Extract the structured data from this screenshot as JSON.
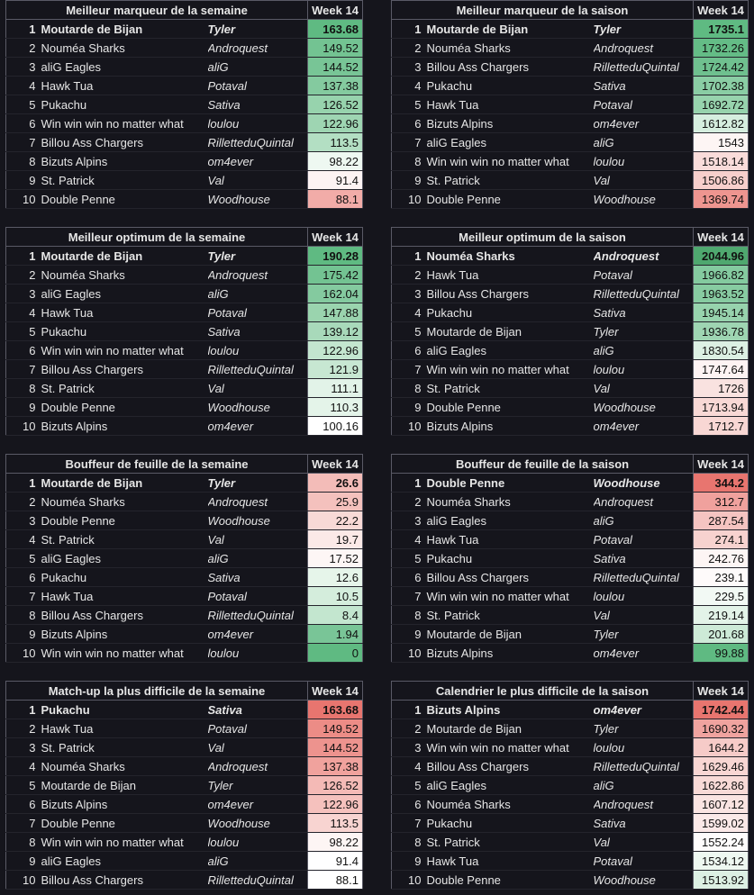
{
  "week_label": "Week 14",
  "tables": [
    {
      "title": "Meilleur marqueur de la semaine",
      "rows": [
        {
          "rank": "1",
          "team": "Moutarde de Bijan",
          "owner": "Tyler",
          "value": "163.68",
          "color": "#5fba82"
        },
        {
          "rank": "2",
          "team": "Nouméa Sharks",
          "owner": "Androquest",
          "value": "149.52",
          "color": "#73c392"
        },
        {
          "rank": "3",
          "team": "aliG Eagles",
          "owner": "aliG",
          "value": "144.52",
          "color": "#78c596"
        },
        {
          "rank": "4",
          "team": "Hawk Tua",
          "owner": "Potaval",
          "value": "137.38",
          "color": "#84ca9f"
        },
        {
          "rank": "5",
          "team": "Pukachu",
          "owner": "Sativa",
          "value": "126.52",
          "color": "#97d3ad"
        },
        {
          "rank": "6",
          "team": "Win win win no matter what",
          "owner": "loulou",
          "value": "122.96",
          "color": "#9ed5b2"
        },
        {
          "rank": "7",
          "team": "Billou Ass Chargers",
          "owner": "RilletteduQuintal",
          "value": "113.5",
          "color": "#b3dfc3"
        },
        {
          "rank": "8",
          "team": "Bizuts Alpins",
          "owner": "om4ever",
          "value": "98.22",
          "color": "#eef8f1"
        },
        {
          "rank": "9",
          "team": "St. Patrick",
          "owner": "Val",
          "value": "91.4",
          "color": "#fdf3f3"
        },
        {
          "rank": "10",
          "team": "Double Penne",
          "owner": "Woodhouse",
          "value": "88.1",
          "color": "#f2aca8"
        }
      ]
    },
    {
      "title": "Meilleur marqueur de la saison",
      "rows": [
        {
          "rank": "1",
          "team": "Moutarde de Bijan",
          "owner": "Tyler",
          "value": "1735.1",
          "color": "#5fba82"
        },
        {
          "rank": "2",
          "team": "Nouméa Sharks",
          "owner": "Androquest",
          "value": "1732.26",
          "color": "#64bc86"
        },
        {
          "rank": "3",
          "team": "Billou Ass Chargers",
          "owner": "RilletteduQuintal",
          "value": "1724.42",
          "color": "#6fc08f"
        },
        {
          "rank": "4",
          "team": "Pukachu",
          "owner": "Sativa",
          "value": "1702.38",
          "color": "#8acda4"
        },
        {
          "rank": "5",
          "team": "Hawk Tua",
          "owner": "Potaval",
          "value": "1692.72",
          "color": "#97d3ad"
        },
        {
          "rank": "6",
          "team": "Bizuts Alpins",
          "owner": "om4ever",
          "value": "1612.82",
          "color": "#d6eedf"
        },
        {
          "rank": "7",
          "team": "aliG Eagles",
          "owner": "aliG",
          "value": "1543",
          "color": "#fdf5f4"
        },
        {
          "rank": "8",
          "team": "Win win win no matter what",
          "owner": "loulou",
          "value": "1518.14",
          "color": "#f9dcda"
        },
        {
          "rank": "9",
          "team": "St. Patrick",
          "owner": "Val",
          "value": "1506.86",
          "color": "#f7cfcc"
        },
        {
          "rank": "10",
          "team": "Double Penne",
          "owner": "Woodhouse",
          "value": "1369.74",
          "color": "#ee9590"
        }
      ]
    },
    {
      "title": "Meilleur optimum de la semaine",
      "rows": [
        {
          "rank": "1",
          "team": "Moutarde de Bijan",
          "owner": "Tyler",
          "value": "190.28",
          "color": "#5fba82"
        },
        {
          "rank": "2",
          "team": "Nouméa Sharks",
          "owner": "Androquest",
          "value": "175.42",
          "color": "#73c392"
        },
        {
          "rank": "3",
          "team": "aliG Eagles",
          "owner": "aliG",
          "value": "162.04",
          "color": "#84ca9f"
        },
        {
          "rank": "4",
          "team": "Hawk Tua",
          "owner": "Potaval",
          "value": "147.88",
          "color": "#9ad4ae"
        },
        {
          "rank": "5",
          "team": "Pukachu",
          "owner": "Sativa",
          "value": "139.12",
          "color": "#a8d9ba"
        },
        {
          "rank": "6",
          "team": "Win win win no matter what",
          "owner": "loulou",
          "value": "122.96",
          "color": "#c3e6cf"
        },
        {
          "rank": "7",
          "team": "Billou Ass Chargers",
          "owner": "RilletteduQuintal",
          "value": "121.9",
          "color": "#c7e7d2"
        },
        {
          "rank": "8",
          "team": "St. Patrick",
          "owner": "Val",
          "value": "111.1",
          "color": "#e2f3e8"
        },
        {
          "rank": "9",
          "team": "Double Penne",
          "owner": "Woodhouse",
          "value": "110.3",
          "color": "#e4f4e9"
        },
        {
          "rank": "10",
          "team": "Bizuts Alpins",
          "owner": "om4ever",
          "value": "100.16",
          "color": "#ffffff"
        }
      ]
    },
    {
      "title": "Meilleur optimum de la saison",
      "rows": [
        {
          "rank": "1",
          "team": "Nouméa Sharks",
          "owner": "Androquest",
          "value": "2044.96",
          "color": "#4fa86f"
        },
        {
          "rank": "2",
          "team": "Hawk Tua",
          "owner": "Potaval",
          "value": "1966.82",
          "color": "#84ca9f"
        },
        {
          "rank": "3",
          "team": "Billou Ass Chargers",
          "owner": "RilletteduQuintal",
          "value": "1963.52",
          "color": "#87cba1"
        },
        {
          "rank": "4",
          "team": "Pukachu",
          "owner": "Sativa",
          "value": "1945.14",
          "color": "#97d3ad"
        },
        {
          "rank": "5",
          "team": "Moutarde de Bijan",
          "owner": "Tyler",
          "value": "1936.78",
          "color": "#9ed5b2"
        },
        {
          "rank": "6",
          "team": "aliG Eagles",
          "owner": "aliG",
          "value": "1830.54",
          "color": "#dcf0e3"
        },
        {
          "rank": "7",
          "team": "Win win win no matter what",
          "owner": "loulou",
          "value": "1747.64",
          "color": "#fdf3f3"
        },
        {
          "rank": "8",
          "team": "St. Patrick",
          "owner": "Val",
          "value": "1726",
          "color": "#f9e2e0"
        },
        {
          "rank": "9",
          "team": "Double Penne",
          "owner": "Woodhouse",
          "value": "1713.94",
          "color": "#f8d8d5"
        },
        {
          "rank": "10",
          "team": "Bizuts Alpins",
          "owner": "om4ever",
          "value": "1712.7",
          "color": "#f8d7d4"
        }
      ]
    },
    {
      "title": "Bouffeur de feuille de la semaine",
      "rows": [
        {
          "rank": "1",
          "team": "Moutarde de Bijan",
          "owner": "Tyler",
          "value": "26.6",
          "color": "#f3bcb8"
        },
        {
          "rank": "2",
          "team": "Nouméa Sharks",
          "owner": "Androquest",
          "value": "25.9",
          "color": "#f4c1bd"
        },
        {
          "rank": "3",
          "team": "Double Penne",
          "owner": "Woodhouse",
          "value": "22.2",
          "color": "#f8d9d6"
        },
        {
          "rank": "4",
          "team": "St. Patrick",
          "owner": "Val",
          "value": "19.7",
          "color": "#fbe9e7"
        },
        {
          "rank": "5",
          "team": "aliG Eagles",
          "owner": "aliG",
          "value": "17.52",
          "color": "#fdf6f5"
        },
        {
          "rank": "6",
          "team": "Pukachu",
          "owner": "Sativa",
          "value": "12.6",
          "color": "#e6f5ea"
        },
        {
          "rank": "7",
          "team": "Hawk Tua",
          "owner": "Potaval",
          "value": "10.5",
          "color": "#d4eddc"
        },
        {
          "rank": "8",
          "team": "Billou Ass Chargers",
          "owner": "RilletteduQuintal",
          "value": "8.4",
          "color": "#c3e6cf"
        },
        {
          "rank": "9",
          "team": "Bizuts Alpins",
          "owner": "om4ever",
          "value": "1.94",
          "color": "#79c597"
        },
        {
          "rank": "10",
          "team": "Win win win no matter what",
          "owner": "loulou",
          "value": "0",
          "color": "#5fba82"
        }
      ]
    },
    {
      "title": "Bouffeur de feuille de la saison",
      "rows": [
        {
          "rank": "1",
          "team": "Double Penne",
          "owner": "Woodhouse",
          "value": "344.2",
          "color": "#e8756f"
        },
        {
          "rank": "2",
          "team": "Nouméa Sharks",
          "owner": "Androquest",
          "value": "312.7",
          "color": "#f0a19d"
        },
        {
          "rank": "3",
          "team": "aliG Eagles",
          "owner": "aliG",
          "value": "287.54",
          "color": "#f5c4c1"
        },
        {
          "rank": "4",
          "team": "Hawk Tua",
          "owner": "Potaval",
          "value": "274.1",
          "color": "#f7d2cf"
        },
        {
          "rank": "5",
          "team": "Pukachu",
          "owner": "Sativa",
          "value": "242.76",
          "color": "#fdf5f4"
        },
        {
          "rank": "6",
          "team": "Billou Ass Chargers",
          "owner": "RilletteduQuintal",
          "value": "239.1",
          "color": "#fefafa"
        },
        {
          "rank": "7",
          "team": "Win win win no matter what",
          "owner": "loulou",
          "value": "229.5",
          "color": "#f2f9f4"
        },
        {
          "rank": "8",
          "team": "St. Patrick",
          "owner": "Val",
          "value": "219.14",
          "color": "#e3f3e8"
        },
        {
          "rank": "9",
          "team": "Moutarde de Bijan",
          "owner": "Tyler",
          "value": "201.68",
          "color": "#cdeAd7"
        },
        {
          "rank": "10",
          "team": "Bizuts Alpins",
          "owner": "om4ever",
          "value": "99.88",
          "color": "#5fba82"
        }
      ]
    },
    {
      "title": "Match-up la plus difficile de la semaine",
      "rows": [
        {
          "rank": "1",
          "team": "Pukachu",
          "owner": "Sativa",
          "value": "163.68",
          "color": "#e8756f"
        },
        {
          "rank": "2",
          "team": "Hawk Tua",
          "owner": "Potaval",
          "value": "149.52",
          "color": "#ec8c86"
        },
        {
          "rank": "3",
          "team": "St. Patrick",
          "owner": "Val",
          "value": "144.52",
          "color": "#ed938e"
        },
        {
          "rank": "4",
          "team": "Nouméa Sharks",
          "owner": "Androquest",
          "value": "137.38",
          "color": "#f0a29d"
        },
        {
          "rank": "5",
          "team": "Moutarde de Bijan",
          "owner": "Tyler",
          "value": "126.52",
          "color": "#f4bab6"
        },
        {
          "rank": "6",
          "team": "Bizuts Alpins",
          "owner": "om4ever",
          "value": "122.96",
          "color": "#f5c1bd"
        },
        {
          "rank": "7",
          "team": "Double Penne",
          "owner": "Woodhouse",
          "value": "113.5",
          "color": "#f8d4d1"
        },
        {
          "rank": "8",
          "team": "Win win win no matter what",
          "owner": "loulou",
          "value": "98.22",
          "color": "#fdf5f4"
        },
        {
          "rank": "9",
          "team": "aliG Eagles",
          "owner": "aliG",
          "value": "91.4",
          "color": "#ffffff"
        },
        {
          "rank": "10",
          "team": "Billou Ass Chargers",
          "owner": "RilletteduQuintal",
          "value": "88.1",
          "color": "#ffffff"
        }
      ]
    },
    {
      "title": "Calendrier le plus difficile de la saison",
      "rows": [
        {
          "rank": "1",
          "team": "Bizuts Alpins",
          "owner": "om4ever",
          "value": "1742.44",
          "color": "#e8756f"
        },
        {
          "rank": "2",
          "team": "Moutarde de Bijan",
          "owner": "Tyler",
          "value": "1690.32",
          "color": "#f0a39f"
        },
        {
          "rank": "3",
          "team": "Win win win no matter what",
          "owner": "loulou",
          "value": "1644.2",
          "color": "#f6cbc8"
        },
        {
          "rank": "4",
          "team": "Billou Ass Chargers",
          "owner": "RilletteduQuintal",
          "value": "1629.46",
          "color": "#f8d6d3"
        },
        {
          "rank": "5",
          "team": "aliG Eagles",
          "owner": "aliG",
          "value": "1622.86",
          "color": "#f8dad7"
        },
        {
          "rank": "6",
          "team": "Nouméa Sharks",
          "owner": "Androquest",
          "value": "1607.12",
          "color": "#fae4e2"
        },
        {
          "rank": "7",
          "team": "Pukachu",
          "owner": "Sativa",
          "value": "1599.02",
          "color": "#fbe9e8"
        },
        {
          "rank": "8",
          "team": "St. Patrick",
          "owner": "Val",
          "value": "1552.24",
          "color": "#fefcfc"
        },
        {
          "rank": "9",
          "team": "Hawk Tua",
          "owner": "Potaval",
          "value": "1534.12",
          "color": "#eef8f1"
        },
        {
          "rank": "10",
          "team": "Double Penne",
          "owner": "Woodhouse",
          "value": "1513.92",
          "color": "#dcf0e3"
        }
      ]
    }
  ]
}
